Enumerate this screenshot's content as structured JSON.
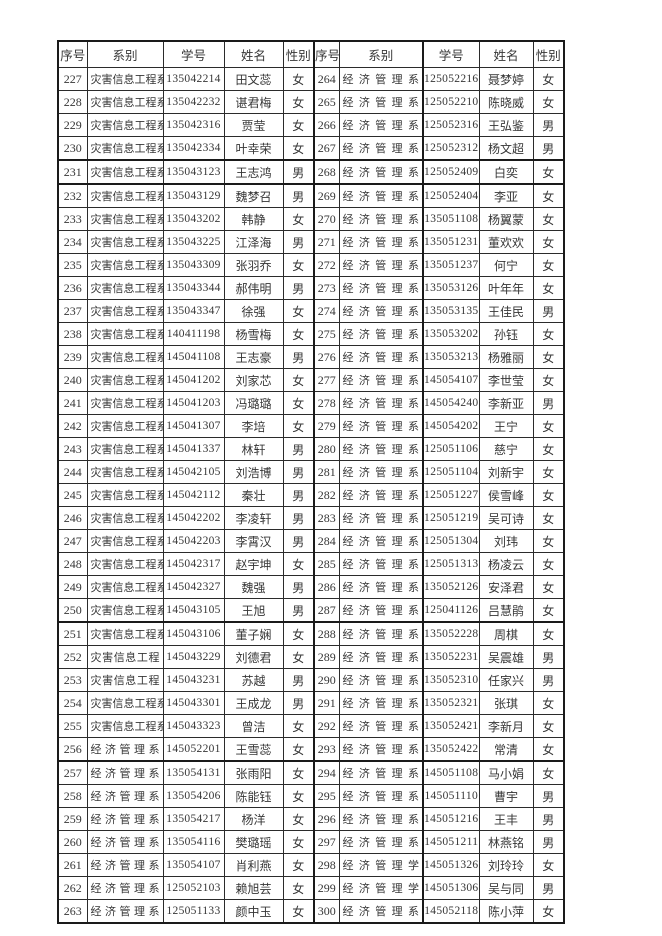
{
  "colors": {
    "background": "#ffffff",
    "border": "#1a1a1a",
    "text": "#363636"
  },
  "table": {
    "columns": [
      "序号",
      "系别",
      "学号",
      "姓名",
      "性别"
    ],
    "left_rows": [
      [
        "227",
        "灾害信息工程系",
        "135042214",
        "田文蕊",
        "女"
      ],
      [
        "228",
        "灾害信息工程系",
        "135042232",
        "谌君梅",
        "女"
      ],
      [
        "229",
        "灾害信息工程系",
        "135042316",
        "贾莹",
        "女"
      ],
      [
        "230",
        "灾害信息工程系",
        "135042334",
        "叶幸荣",
        "女"
      ],
      [
        "231",
        "灾害信息工程系",
        "135043123",
        "王志鸿",
        "男"
      ],
      [
        "232",
        "灾害信息工程系",
        "135043129",
        "魏梦召",
        "男"
      ],
      [
        "233",
        "灾害信息工程系",
        "135043202",
        "韩静",
        "女"
      ],
      [
        "234",
        "灾害信息工程系",
        "135043225",
        "江泽海",
        "男"
      ],
      [
        "235",
        "灾害信息工程系",
        "135043309",
        "张羽乔",
        "女"
      ],
      [
        "236",
        "灾害信息工程系",
        "135043344",
        "郝伟明",
        "男"
      ],
      [
        "237",
        "灾害信息工程系",
        "135043347",
        "徐强",
        "女"
      ],
      [
        "238",
        "灾害信息工程系",
        "140411198",
        "杨雪梅",
        "女"
      ],
      [
        "239",
        "灾害信息工程系",
        "145041108",
        "王志豪",
        "男"
      ],
      [
        "240",
        "灾害信息工程系",
        "145041202",
        "刘家芯",
        "女"
      ],
      [
        "241",
        "灾害信息工程系",
        "145041203",
        "冯璐璐",
        "女"
      ],
      [
        "242",
        "灾害信息工程系",
        "145041307",
        "李培",
        "女"
      ],
      [
        "243",
        "灾害信息工程系",
        "145041337",
        "林轩",
        "男"
      ],
      [
        "244",
        "灾害信息工程系",
        "145042105",
        "刘浩博",
        "男"
      ],
      [
        "245",
        "灾害信息工程系",
        "145042112",
        "秦壮",
        "男"
      ],
      [
        "246",
        "灾害信息工程系",
        "145042202",
        "李凌轩",
        "男"
      ],
      [
        "247",
        "灾害信息工程系",
        "145042203",
        "李霄汉",
        "男"
      ],
      [
        "248",
        "灾害信息工程系",
        "145042317",
        "赵宇坤",
        "女"
      ],
      [
        "249",
        "灾害信息工程系",
        "145042327",
        "魏强",
        "男"
      ],
      [
        "250",
        "灾害信息工程系",
        "145043105",
        "王旭",
        "男"
      ],
      [
        "251",
        "灾害信息工程系",
        "145043106",
        "董子娴",
        "女"
      ],
      [
        "252",
        "灾害信息工程",
        "145043229",
        "刘德君",
        "女"
      ],
      [
        "253",
        "灾害信息工程",
        "145043231",
        "苏越",
        "男"
      ],
      [
        "254",
        "灾害信息工程系",
        "145043301",
        "王成龙",
        "男"
      ],
      [
        "255",
        "灾害信息工程系",
        "145043323",
        "曾洁",
        "女"
      ],
      [
        "256",
        "经济管理系",
        "145052201",
        "王雪蕊",
        "女"
      ],
      [
        "257",
        "经济管理系",
        "135054131",
        "张雨阳",
        "女"
      ],
      [
        "258",
        "经济管理系",
        "135054206",
        "陈能钰",
        "女"
      ],
      [
        "259",
        "经济管理系",
        "135054217",
        "杨洋",
        "女"
      ],
      [
        "260",
        "经济管理系",
        "135054116",
        "樊璐瑶",
        "女"
      ],
      [
        "261",
        "经济管理系",
        "135054107",
        "肖利燕",
        "女"
      ],
      [
        "262",
        "经济管理系",
        "125052103",
        "赖旭芸",
        "女"
      ],
      [
        "263",
        "经济管理系",
        "125051133",
        "颜中玉",
        "女"
      ]
    ],
    "right_rows": [
      [
        "264",
        "经济管理系",
        "125052216",
        "聂梦婷",
        "女"
      ],
      [
        "265",
        "经济管理系",
        "125052210",
        "陈晓威",
        "女"
      ],
      [
        "266",
        "经济管理系",
        "125052316",
        "王弘鉴",
        "男"
      ],
      [
        "267",
        "经济管理系",
        "125052312",
        "杨文超",
        "男"
      ],
      [
        "268",
        "经济管理系",
        "125052409",
        "白奕",
        "女"
      ],
      [
        "269",
        "经济管理系",
        "125052404",
        "李亚",
        "女"
      ],
      [
        "270",
        "经济管理系",
        "135051108",
        "杨翼蒙",
        "女"
      ],
      [
        "271",
        "经济管理系",
        "135051231",
        "董欢欢",
        "女"
      ],
      [
        "272",
        "经济管理系",
        "135051237",
        "何宁",
        "女"
      ],
      [
        "273",
        "经济管理系",
        "135053126",
        "叶年年",
        "女"
      ],
      [
        "274",
        "经济管理系",
        "135053135",
        "王佳民",
        "男"
      ],
      [
        "275",
        "经济管理系",
        "135053202",
        "孙钰",
        "女"
      ],
      [
        "276",
        "经济管理系",
        "135053213",
        "杨雅丽",
        "女"
      ],
      [
        "277",
        "经济管理系",
        "145054107",
        "李世莹",
        "女"
      ],
      [
        "278",
        "经济管理系",
        "145054240",
        "李新亚",
        "男"
      ],
      [
        "279",
        "经济管理系",
        "145054202",
        "王宁",
        "女"
      ],
      [
        "280",
        "经济管理系",
        "125051106",
        "慈宁",
        "女"
      ],
      [
        "281",
        "经济管理系",
        "125051104",
        "刘新宇",
        "女"
      ],
      [
        "282",
        "经济管理系",
        "125051227",
        "侯雪峰",
        "女"
      ],
      [
        "283",
        "经济管理系",
        "125051219",
        "吴可诗",
        "女"
      ],
      [
        "284",
        "经济管理系",
        "125051304",
        "刘玮",
        "女"
      ],
      [
        "285",
        "经济管理系",
        "125051313",
        "杨凌云",
        "女"
      ],
      [
        "286",
        "经济管理系",
        "135052126",
        "安泽君",
        "女"
      ],
      [
        "287",
        "经济管理系",
        "125041126",
        "吕慧鹃",
        "女"
      ],
      [
        "288",
        "经济管理系",
        "135052228",
        "周棋",
        "女"
      ],
      [
        "289",
        "经济管理系",
        "135052231",
        "吴震雄",
        "男"
      ],
      [
        "290",
        "经济管理系",
        "135052310",
        "任家兴",
        "男"
      ],
      [
        "291",
        "经济管理系",
        "135052321",
        "张琪",
        "女"
      ],
      [
        "292",
        "经济管理系",
        "135052421",
        "李新月",
        "女"
      ],
      [
        "293",
        "经济管理系",
        "135052422",
        "常清",
        "女"
      ],
      [
        "294",
        "经济管理系",
        "145051108",
        "马小娟",
        "女"
      ],
      [
        "295",
        "经济管理系",
        "145051110",
        "曹宇",
        "男"
      ],
      [
        "296",
        "经济管理系",
        "145051216",
        "王丰",
        "男"
      ],
      [
        "297",
        "经济管理系",
        "145051211",
        "林燕铭",
        "男"
      ],
      [
        "298",
        "经济管理学",
        "145051326",
        "刘玲玲",
        "女"
      ],
      [
        "299",
        "经济管理学",
        "145051306",
        "吴与同",
        "男"
      ],
      [
        "300",
        "经济管理系",
        "145052118",
        "陈小萍",
        "女"
      ]
    ]
  }
}
